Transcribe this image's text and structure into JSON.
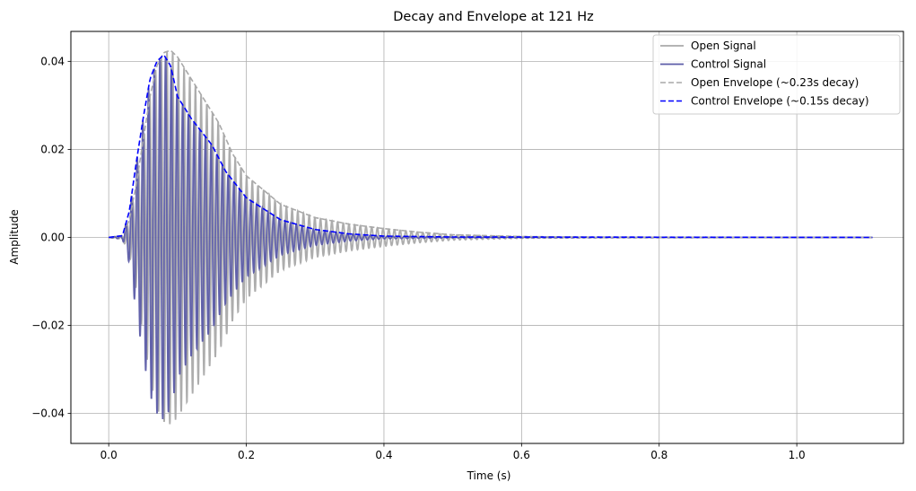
{
  "chart_data": {
    "type": "line",
    "title": "Decay and Envelope at 121 Hz",
    "xlabel": "Time (s)",
    "ylabel": "Amplitude",
    "xlim": [
      -0.055,
      1.155
    ],
    "ylim": [
      -0.0468,
      0.0468
    ],
    "xticks": [
      0.0,
      0.2,
      0.4,
      0.6,
      0.8,
      1.0
    ],
    "xtick_labels": [
      "0.0",
      "0.2",
      "0.4",
      "0.6",
      "0.8",
      "1.0"
    ],
    "yticks": [
      -0.04,
      -0.02,
      0.0,
      0.02,
      0.04
    ],
    "ytick_labels": [
      "−0.04",
      "−0.02",
      "0.00",
      "0.02",
      "0.04"
    ],
    "grid": true,
    "legend_position": "top-right",
    "frequency_hz": 121,
    "duration_s": 1.11,
    "series": [
      {
        "name": "Open Signal",
        "kind": "signal",
        "color": "#a9a9a9",
        "envelope_points": [
          [
            0.0,
            0.0
          ],
          [
            0.02,
            0.0004
          ],
          [
            0.03,
            0.004
          ],
          [
            0.04,
            0.012
          ],
          [
            0.05,
            0.022
          ],
          [
            0.06,
            0.032
          ],
          [
            0.07,
            0.039
          ],
          [
            0.08,
            0.042
          ],
          [
            0.09,
            0.0425
          ],
          [
            0.1,
            0.041
          ],
          [
            0.12,
            0.036
          ],
          [
            0.14,
            0.031
          ],
          [
            0.16,
            0.026
          ],
          [
            0.18,
            0.019
          ],
          [
            0.2,
            0.014
          ],
          [
            0.25,
            0.0075
          ],
          [
            0.3,
            0.0045
          ],
          [
            0.35,
            0.003
          ],
          [
            0.4,
            0.002
          ],
          [
            0.45,
            0.0012
          ],
          [
            0.5,
            0.0006
          ],
          [
            0.6,
            0.0002
          ],
          [
            0.7,
            5e-05
          ],
          [
            1.11,
            0.0
          ]
        ]
      },
      {
        "name": "Control Signal",
        "kind": "signal",
        "color": "#5c5ca8",
        "envelope_points": [
          [
            0.0,
            0.0
          ],
          [
            0.02,
            0.0004
          ],
          [
            0.03,
            0.006
          ],
          [
            0.04,
            0.017
          ],
          [
            0.05,
            0.027
          ],
          [
            0.06,
            0.036
          ],
          [
            0.07,
            0.04
          ],
          [
            0.08,
            0.0415
          ],
          [
            0.09,
            0.039
          ],
          [
            0.1,
            0.032
          ],
          [
            0.12,
            0.027
          ],
          [
            0.14,
            0.023
          ],
          [
            0.15,
            0.021
          ],
          [
            0.17,
            0.015
          ],
          [
            0.2,
            0.009
          ],
          [
            0.25,
            0.004
          ],
          [
            0.3,
            0.0018
          ],
          [
            0.35,
            0.0008
          ],
          [
            0.4,
            0.0003
          ],
          [
            0.5,
            0.0001
          ],
          [
            1.11,
            0.0
          ]
        ]
      },
      {
        "name": "Open Envelope (~0.23s decay)",
        "kind": "envelope",
        "color": "#a9a9a9",
        "points": [
          [
            0.0,
            0.0
          ],
          [
            0.02,
            0.0004
          ],
          [
            0.03,
            0.004
          ],
          [
            0.04,
            0.012
          ],
          [
            0.05,
            0.022
          ],
          [
            0.06,
            0.032
          ],
          [
            0.07,
            0.039
          ],
          [
            0.08,
            0.042
          ],
          [
            0.09,
            0.0425
          ],
          [
            0.1,
            0.041
          ],
          [
            0.12,
            0.036
          ],
          [
            0.14,
            0.031
          ],
          [
            0.16,
            0.026
          ],
          [
            0.18,
            0.019
          ],
          [
            0.2,
            0.014
          ],
          [
            0.25,
            0.0075
          ],
          [
            0.3,
            0.0045
          ],
          [
            0.35,
            0.003
          ],
          [
            0.4,
            0.002
          ],
          [
            0.45,
            0.0012
          ],
          [
            0.5,
            0.0006
          ],
          [
            0.6,
            0.0002
          ],
          [
            0.7,
            5e-05
          ],
          [
            1.11,
            0.0
          ]
        ]
      },
      {
        "name": "Control Envelope (~0.15s decay)",
        "kind": "envelope",
        "color": "#0000ff",
        "points": [
          [
            0.0,
            0.0
          ],
          [
            0.02,
            0.0004
          ],
          [
            0.03,
            0.006
          ],
          [
            0.04,
            0.017
          ],
          [
            0.05,
            0.027
          ],
          [
            0.06,
            0.036
          ],
          [
            0.07,
            0.04
          ],
          [
            0.08,
            0.0415
          ],
          [
            0.09,
            0.039
          ],
          [
            0.1,
            0.032
          ],
          [
            0.12,
            0.027
          ],
          [
            0.14,
            0.023
          ],
          [
            0.15,
            0.021
          ],
          [
            0.17,
            0.015
          ],
          [
            0.2,
            0.009
          ],
          [
            0.25,
            0.004
          ],
          [
            0.3,
            0.0018
          ],
          [
            0.35,
            0.0008
          ],
          [
            0.4,
            0.0003
          ],
          [
            0.5,
            0.0001
          ],
          [
            1.11,
            0.0
          ]
        ]
      }
    ]
  }
}
